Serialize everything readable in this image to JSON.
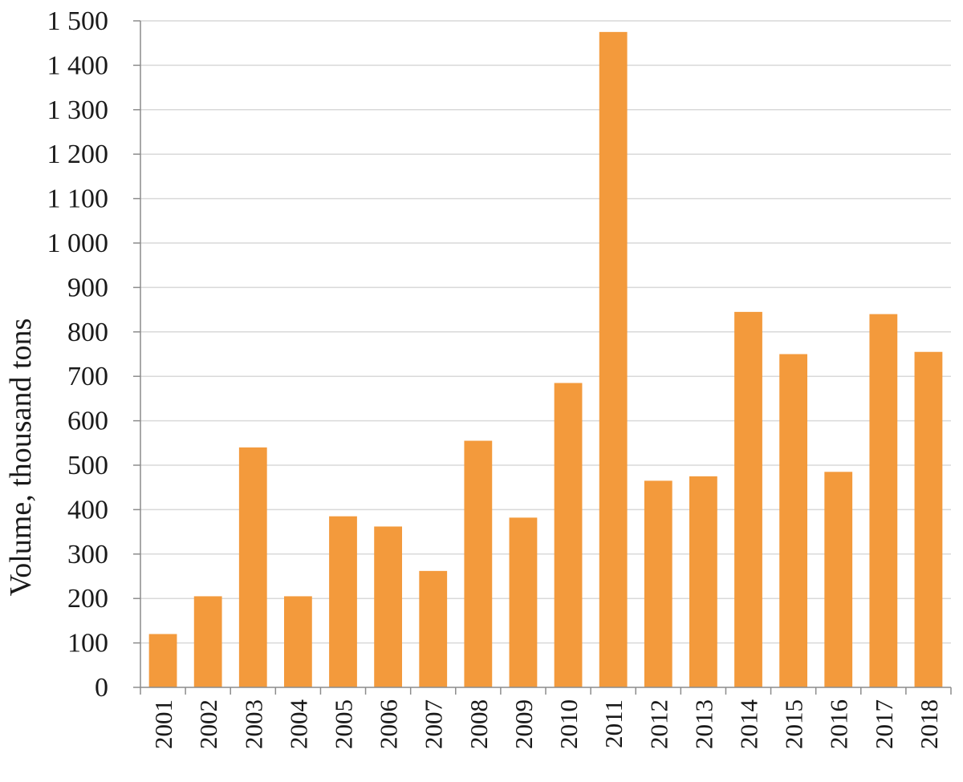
{
  "chart_data": {
    "type": "bar",
    "title": "",
    "xlabel": "",
    "ylabel": "Volume, thousand tons",
    "ylim": [
      0,
      1500
    ],
    "y_ticks": [
      0,
      100,
      200,
      300,
      400,
      500,
      600,
      700,
      800,
      900,
      1000,
      1100,
      1200,
      1300,
      1400,
      1500
    ],
    "y_tick_labels": [
      "0",
      "100",
      "200",
      "300",
      "400",
      "500",
      "600",
      "700",
      "800",
      "900",
      "1 000",
      "1 100",
      "1 200",
      "1 300",
      "1 400",
      "1 500"
    ],
    "grid": true,
    "legend": "none",
    "bar_color": "#F39A3C",
    "categories": [
      "2001",
      "2002",
      "2003",
      "2004",
      "2005",
      "2006",
      "2007",
      "2008",
      "2009",
      "2010",
      "2011",
      "2012",
      "2013",
      "2014",
      "2015",
      "2016",
      "2017",
      "2018"
    ],
    "values": [
      120,
      205,
      540,
      205,
      385,
      362,
      262,
      555,
      382,
      685,
      1475,
      465,
      475,
      845,
      750,
      485,
      840,
      755
    ]
  }
}
